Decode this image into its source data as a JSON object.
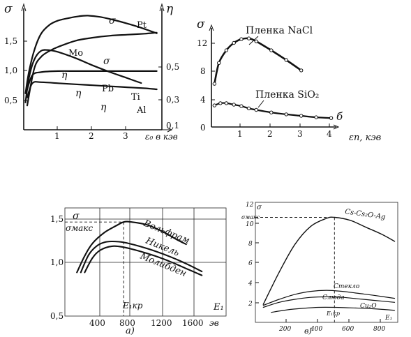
{
  "chart_data": [
    {
      "id": "a1",
      "type": "line",
      "ylabel_left": "σ",
      "ylabel_right": "η",
      "xlabel": "ε₀ в кэв",
      "xlim": [
        0,
        4
      ],
      "ylim_left": [
        0,
        2
      ],
      "ylim_right": [
        0,
        0.6
      ],
      "x_ticks": [
        "1",
        "2",
        "3"
      ],
      "y_ticks_left": [
        "0,5",
        "1,0",
        "1,5"
      ],
      "y_ticks_right": [
        "0,1",
        "0,3",
        "0,5"
      ],
      "series": [
        {
          "name": "Pt",
          "axis": "left",
          "label": "σ",
          "x": [
            0.05,
            0.15,
            0.3,
            0.5,
            0.75,
            1.0,
            1.3,
            1.6,
            1.85,
            2.2,
            2.6,
            3.0,
            3.4,
            3.85
          ],
          "y": [
            0.6,
            0.95,
            1.3,
            1.58,
            1.73,
            1.8,
            1.84,
            1.87,
            1.88,
            1.86,
            1.81,
            1.75,
            1.68,
            1.59
          ]
        },
        {
          "name": "Mo",
          "axis": "left",
          "label": "σ",
          "x": [
            0.05,
            0.15,
            0.3,
            0.5,
            0.75,
            1.0,
            1.5,
            2.0,
            2.5,
            3.0,
            3.4
          ],
          "y": [
            0.45,
            0.85,
            1.15,
            1.3,
            1.31,
            1.28,
            1.18,
            1.06,
            0.95,
            0.85,
            0.77
          ]
        },
        {
          "name": "Pb",
          "axis": "right",
          "label": "η",
          "x": [
            0.1,
            0.3,
            0.5,
            0.75,
            1.0,
            1.5,
            2.0,
            2.5,
            3.0,
            3.5,
            3.85
          ],
          "y": [
            0.12,
            0.3,
            0.36,
            0.39,
            0.41,
            0.44,
            0.455,
            0.465,
            0.47,
            0.475,
            0.48
          ]
        },
        {
          "name": "Ti",
          "axis": "right",
          "label": "η",
          "x": [
            0.1,
            0.25,
            0.5,
            1.0,
            1.5,
            2.0,
            2.5,
            3.0,
            3.5,
            3.85
          ],
          "y": [
            0.2,
            0.27,
            0.285,
            0.29,
            0.29,
            0.29,
            0.29,
            0.29,
            0.29,
            0.29
          ]
        },
        {
          "name": "Al",
          "axis": "right",
          "label": "η",
          "x": [
            0.1,
            0.25,
            0.5,
            1.0,
            1.5,
            2.0,
            2.5,
            3.0,
            3.5,
            3.85
          ],
          "y": [
            0.16,
            0.23,
            0.235,
            0.23,
            0.225,
            0.22,
            0.215,
            0.21,
            0.205,
            0.2
          ]
        }
      ]
    },
    {
      "id": "b1",
      "type": "line",
      "ylabel": "σ",
      "xlabel": "εп, кэв",
      "xlim": [
        0,
        4.5
      ],
      "ylim": [
        0,
        15
      ],
      "x_ticks": [
        "1",
        "2",
        "3",
        "4"
      ],
      "y_ticks": [
        "0",
        "4",
        "8",
        "12"
      ],
      "panel_label": "б",
      "series": [
        {
          "name": "Пленка NaCl",
          "x": [
            0.1,
            0.25,
            0.5,
            0.75,
            1.0,
            1.25,
            1.5,
            2.0,
            2.5,
            3.0
          ],
          "y": [
            5.8,
            8.6,
            10.3,
            11.3,
            11.8,
            11.9,
            11.5,
            10.3,
            9.0,
            7.6
          ]
        },
        {
          "name": "Пленка SiO₂",
          "x": [
            0.1,
            0.3,
            0.5,
            0.75,
            1.0,
            1.25,
            1.5,
            2.0,
            2.5,
            3.0,
            3.5,
            4.0
          ],
          "y": [
            2.9,
            3.2,
            3.2,
            3.0,
            2.8,
            2.5,
            2.3,
            1.95,
            1.7,
            1.5,
            1.3,
            1.2
          ]
        }
      ]
    },
    {
      "id": "a2",
      "type": "line",
      "ylabel": "σмакс",
      "sigma_label": "σ",
      "xlabel": "E₁",
      "xunit": "эв",
      "xlim": [
        0,
        1900
      ],
      "ylim": [
        0.5,
        1.55
      ],
      "x_ticks": [
        "400",
        "800",
        "1200",
        "1600"
      ],
      "y_ticks": [
        "0,5",
        "1,0",
        "1,5"
      ],
      "ekr_label": "E₁кр",
      "panel_label": "а)",
      "series": [
        {
          "name": "Вольфрам",
          "x": [
            100,
            200,
            300,
            450,
            600,
            700,
            800,
            1000,
            1200,
            1400,
            1500
          ],
          "y": [
            0.95,
            1.12,
            1.25,
            1.36,
            1.43,
            1.47,
            1.47,
            1.44,
            1.37,
            1.28,
            1.24
          ]
        },
        {
          "name": "Никель",
          "x": [
            150,
            250,
            350,
            450,
            550,
            700,
            900,
            1100,
            1300,
            1500,
            1700
          ],
          "y": [
            0.95,
            1.13,
            1.22,
            1.26,
            1.27,
            1.26,
            1.22,
            1.17,
            1.11,
            1.04,
            0.96
          ]
        },
        {
          "name": "Молибден",
          "x": [
            200,
            300,
            400,
            550,
            700,
            900,
            1100,
            1300,
            1500,
            1700
          ],
          "y": [
            0.95,
            1.1,
            1.18,
            1.22,
            1.21,
            1.17,
            1.12,
            1.06,
            0.99,
            0.92
          ]
        }
      ]
    },
    {
      "id": "b2",
      "type": "line",
      "ylabel": "σ",
      "ymax_label": "σмакс",
      "xlabel": "E₁",
      "xlim": [
        0,
        900
      ],
      "ylim": [
        0,
        12
      ],
      "x_ticks": [
        "200",
        "400",
        "600",
        "800"
      ],
      "y_ticks": [
        "2",
        "4",
        "6",
        "8",
        "10",
        "12"
      ],
      "ekr_label": "E₁кр",
      "panel_label": "в)",
      "series": [
        {
          "name": "Cs-Cs₂O-Ag",
          "x": [
            50,
            150,
            250,
            350,
            450,
            500,
            600,
            700,
            800,
            880
          ],
          "y": [
            1.8,
            5.0,
            7.8,
            9.6,
            10.4,
            10.5,
            10.2,
            9.5,
            8.8,
            8.1
          ]
        },
        {
          "name": "Стекло",
          "x": [
            50,
            150,
            250,
            350,
            450,
            550,
            650,
            750,
            880
          ],
          "y": [
            1.7,
            2.3,
            2.8,
            3.1,
            3.2,
            3.1,
            2.9,
            2.7,
            2.4
          ]
        },
        {
          "name": "Слюда",
          "x": [
            50,
            150,
            250,
            350,
            450,
            550,
            650,
            750,
            880
          ],
          "y": [
            1.5,
            2.0,
            2.3,
            2.5,
            2.55,
            2.5,
            2.35,
            2.2,
            2.0
          ]
        },
        {
          "name": "Cu₂O",
          "x": [
            100,
            200,
            300,
            400,
            500,
            600,
            700,
            800,
            880
          ],
          "y": [
            1.0,
            1.25,
            1.4,
            1.5,
            1.5,
            1.45,
            1.4,
            1.3,
            1.2
          ]
        }
      ]
    }
  ]
}
